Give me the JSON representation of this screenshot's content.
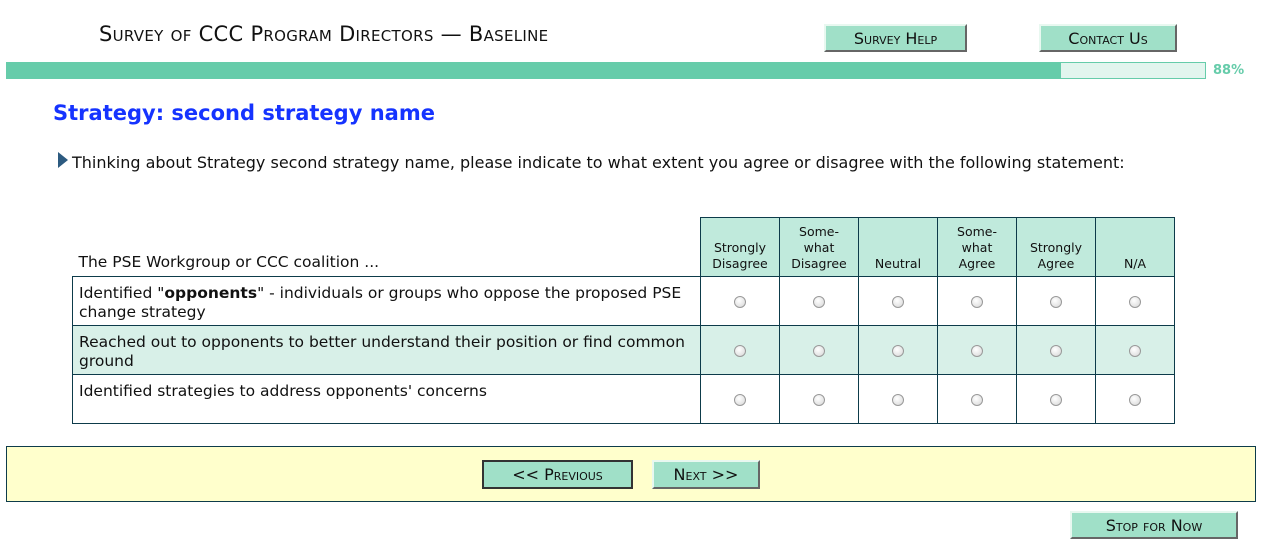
{
  "header": {
    "title": "Survey of CCC Program Directors — Baseline",
    "survey_help": "Survey Help",
    "contact_us": "Contact Us"
  },
  "progress": {
    "percent": 88,
    "label": "88%",
    "color": "#66ccaa"
  },
  "page": {
    "heading": "Strategy: second strategy name",
    "question": "Thinking about Strategy second strategy name, please indicate to what extent you agree or disagree with the following statement:"
  },
  "grid": {
    "lead": "The PSE Workgroup or CCC coalition ...",
    "columns": [
      [
        "Strongly",
        "Disagree"
      ],
      [
        "Some-",
        "what",
        "Disagree"
      ],
      [
        "Neutral"
      ],
      [
        "Some-",
        "what",
        "Agree"
      ],
      [
        "Strongly",
        "Agree"
      ],
      [
        "N/A"
      ]
    ],
    "rows": [
      {
        "pre": "Identified \"",
        "bold": "opponents",
        "post": "\" - individuals or groups who oppose the proposed PSE change strategy"
      },
      {
        "pre": "Reached out to opponents to better understand their position or find common ground",
        "bold": "",
        "post": ""
      },
      {
        "pre": "Identified strategies to address opponents' concerns",
        "bold": "",
        "post": ""
      }
    ]
  },
  "nav": {
    "previous": "<< Previous",
    "next": "Next >>",
    "stop": "Stop for Now"
  }
}
